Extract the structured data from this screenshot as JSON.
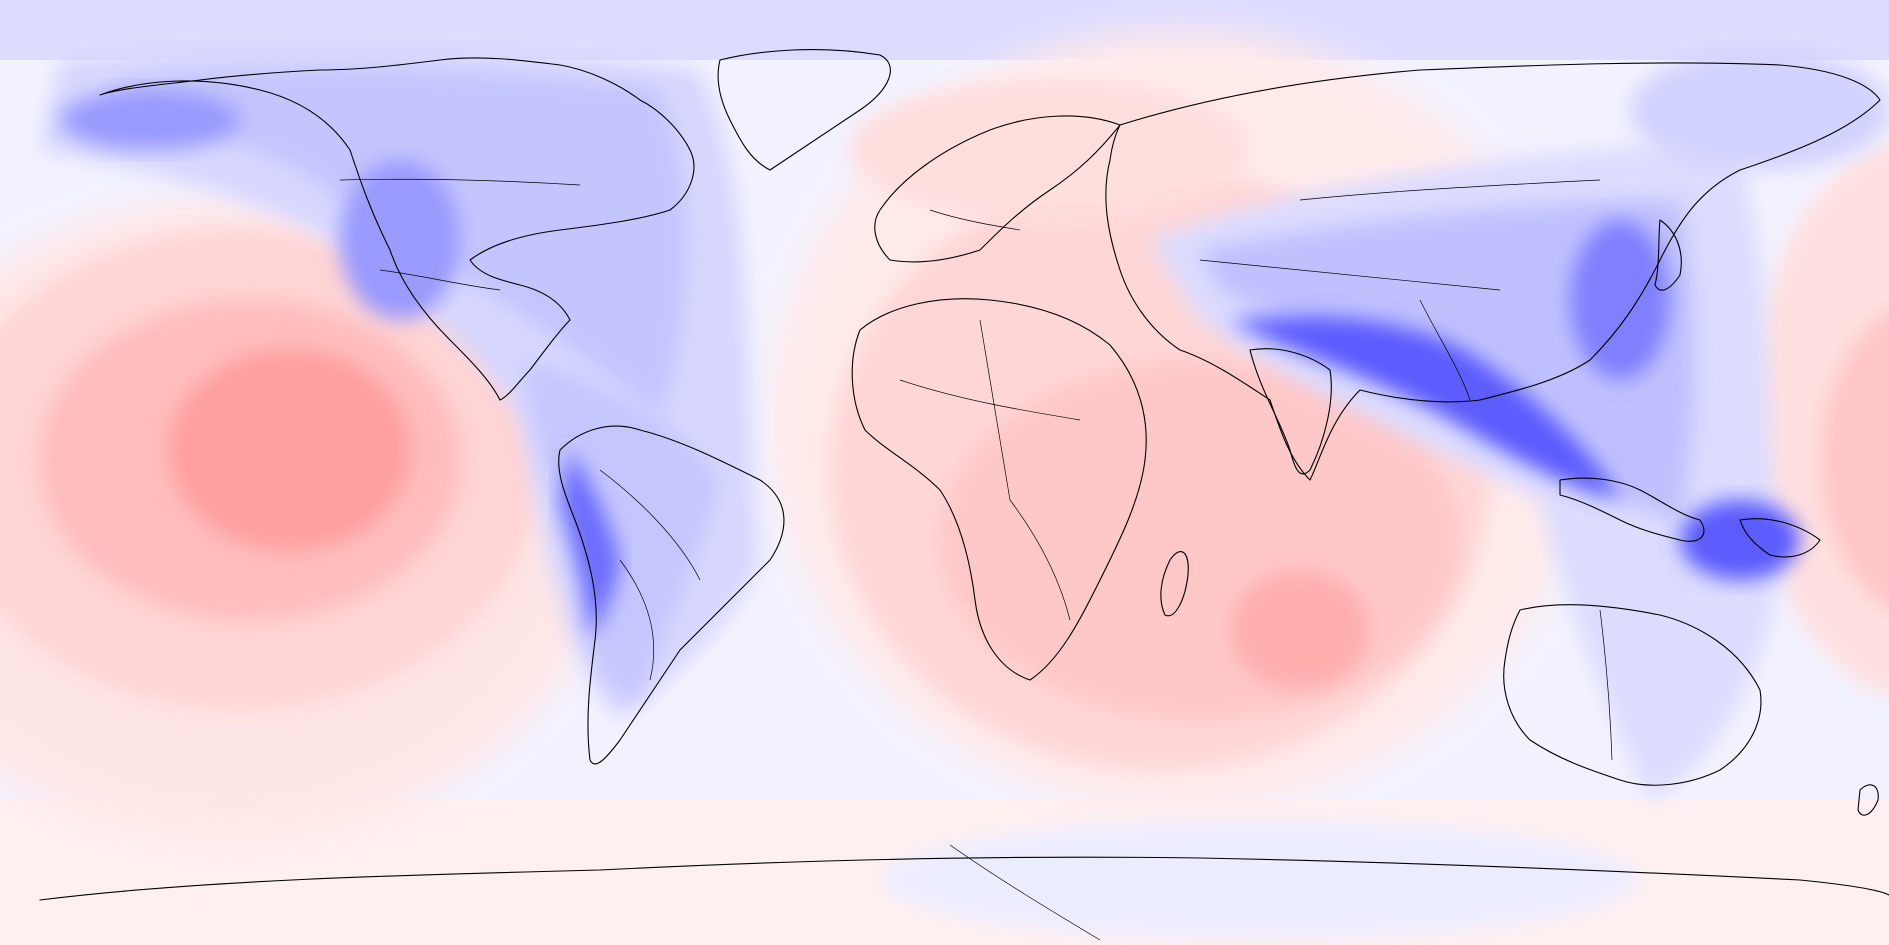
{
  "map": {
    "projection": "equirectangular",
    "center_longitude": 0,
    "field_type": "anomaly",
    "colormap": {
      "negative": "#0000ff",
      "neutral": "#ffffff",
      "positive": "#ff0000"
    },
    "overlays": [
      "coastlines",
      "country-borders"
    ]
  }
}
